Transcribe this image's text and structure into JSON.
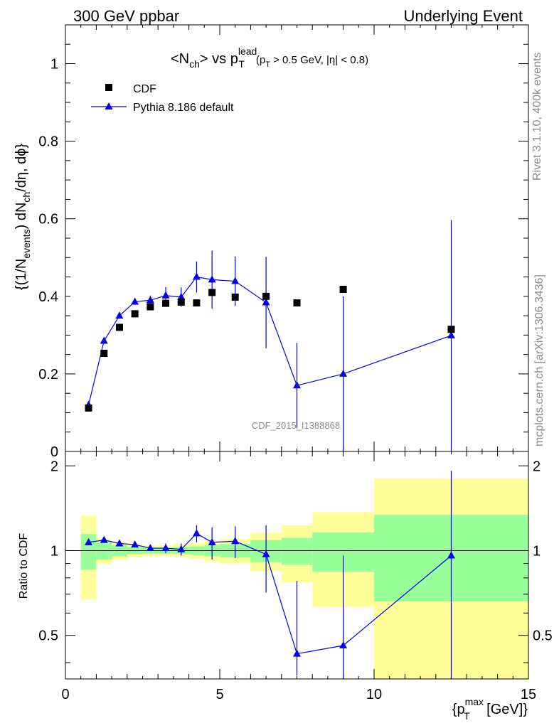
{
  "header": {
    "left": "300 GeV ppbar",
    "right": "Underlying Event"
  },
  "side": {
    "rivet": "Rivet 3.1.10,  400k events",
    "mcplots": "mcplots.cern.ch [arXiv:1306.3436]"
  },
  "watermark": "CDF_2015_I1388868",
  "colors": {
    "data": "#000000",
    "mc": "#0000ee",
    "band_inner": "#99ff99",
    "band_outer": "#ffff99"
  },
  "chart_data": [
    {
      "type": "scatter",
      "title": "<N_ch> vs p_T^lead (p_T > 0.5 GeV, |η| < 0.8)",
      "title_parts": {
        "main": "<N",
        "main_sub": "ch",
        "mid": "> vs p",
        "mid_sup": "lead",
        "mid_sub": "T",
        "cut_a": "(p",
        "cut_a_sub": "T",
        "cut_b": " > 0.5 GeV, |η| < 0.8)"
      },
      "ylabel": "{(1/N_events) dN_ch/dη, dϕ}",
      "ylabel_parts": {
        "a": "{(1/N",
        "a_sub": "events",
        "b": ") dN",
        "b_sub": "ch",
        "c": "/dη, dϕ}"
      },
      "xlim": [
        0,
        15
      ],
      "ylim": [
        0,
        1.1
      ],
      "yticks": [
        0,
        0.2,
        0.4,
        0.6,
        0.8,
        1
      ],
      "ytick_labels": [
        "0",
        "0.2",
        "0.4",
        "0.6",
        "0.8",
        "1"
      ],
      "legend": "top-left",
      "series": [
        {
          "name": "CDF",
          "marker": "square",
          "x": [
            0.75,
            1.25,
            1.75,
            2.25,
            2.75,
            3.25,
            3.75,
            4.25,
            4.75,
            5.5,
            6.5,
            7.5,
            9.0,
            12.5
          ],
          "y": [
            0.112,
            0.253,
            0.32,
            0.355,
            0.373,
            0.382,
            0.385,
            0.383,
            0.41,
            0.398,
            0.4,
            0.383,
            0.418,
            0.315
          ]
        },
        {
          "name": "Pythia 8.186 default",
          "marker": "triangle",
          "x": [
            0.75,
            1.25,
            1.75,
            2.25,
            2.75,
            3.25,
            3.75,
            4.25,
            4.75,
            5.5,
            6.5,
            7.5,
            9.0,
            12.5
          ],
          "y": [
            0.12,
            0.285,
            0.35,
            0.386,
            0.39,
            0.402,
            0.398,
            0.45,
            0.443,
            0.439,
            0.384,
            0.17,
            0.2,
            0.299
          ],
          "yerr": [
            0.004,
            0.006,
            0.008,
            0.008,
            0.012,
            0.022,
            0.025,
            0.04,
            0.075,
            0.064,
            0.118,
            0.11,
            0.2,
            0.298
          ]
        }
      ]
    },
    {
      "type": "scatter",
      "ylabel": "Ratio to CDF",
      "xlabel": "{p_T^max [GeV]}",
      "xlabel_parts": {
        "a": "{p",
        "a_sup": "max",
        "a_sub": "T",
        "b": " [GeV]}"
      },
      "xlim": [
        0,
        15
      ],
      "ylim": [
        0.35,
        2.25
      ],
      "xticks": [
        0,
        5,
        10,
        15
      ],
      "xtick_labels": [
        "0",
        "5",
        "10",
        "15"
      ],
      "yticks": [
        0.5,
        1,
        2
      ],
      "ytick_labels": [
        "0.5",
        "1",
        "2"
      ],
      "bands": {
        "edges": [
          0.5,
          1.0,
          1.5,
          2.0,
          2.5,
          3.0,
          3.5,
          4.0,
          4.5,
          5.0,
          6.0,
          7.0,
          8.0,
          10.0,
          15.0
        ],
        "inner_lo": [
          0.855,
          0.93,
          0.955,
          0.97,
          0.975,
          0.975,
          0.97,
          0.965,
          0.955,
          0.945,
          0.91,
          0.89,
          0.84,
          0.66
        ],
        "inner_hi": [
          1.145,
          1.07,
          1.045,
          1.03,
          1.025,
          1.025,
          1.03,
          1.035,
          1.045,
          1.055,
          1.09,
          1.11,
          1.16,
          1.34
        ],
        "outer_lo": [
          0.67,
          0.895,
          0.925,
          0.945,
          0.955,
          0.955,
          0.945,
          0.935,
          0.915,
          0.9,
          0.845,
          0.77,
          0.63,
          0.35
        ],
        "outer_hi": [
          1.33,
          1.105,
          1.075,
          1.055,
          1.045,
          1.045,
          1.055,
          1.065,
          1.085,
          1.1,
          1.155,
          1.23,
          1.37,
          1.8
        ]
      },
      "series": [
        {
          "name": "Pythia 8.186 default",
          "x": [
            0.75,
            1.25,
            1.75,
            2.25,
            2.75,
            3.25,
            3.75,
            4.25,
            4.75,
            5.5,
            6.5,
            7.5,
            9.0,
            12.5
          ],
          "y": [
            1.07,
            1.09,
            1.06,
            1.05,
            1.02,
            1.02,
            1.01,
            1.15,
            1.07,
            1.08,
            0.97,
            0.43,
            0.46,
            0.96
          ],
          "yerr_lo": [
            0.01,
            0.01,
            0.01,
            0.01,
            0.02,
            0.04,
            0.05,
            0.08,
            0.14,
            0.14,
            0.26,
            0.07,
            0.11,
            0.61
          ],
          "yerr_hi": [
            0.01,
            0.01,
            0.01,
            0.01,
            0.02,
            0.04,
            0.05,
            0.08,
            0.14,
            0.14,
            0.26,
            0.35,
            0.5,
            0.96
          ]
        }
      ]
    }
  ]
}
